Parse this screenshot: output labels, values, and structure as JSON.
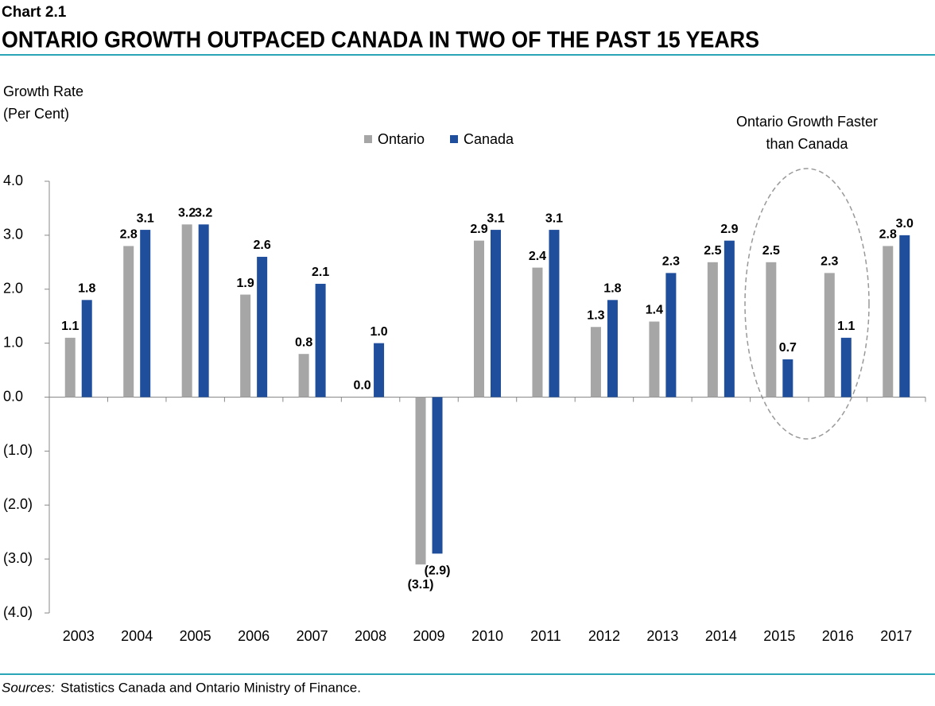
{
  "chart_data": {
    "type": "bar",
    "kicker": "Chart 2.1",
    "title": "ONTARIO GROWTH OUTPACED CANADA IN TWO OF THE PAST 15 YEARS",
    "y_label": [
      "Growth Rate",
      "(Per Cent)"
    ],
    "annotation": [
      "Ontario Growth Faster",
      "than Canada"
    ],
    "source_label": "Sources:",
    "source_text": "Statistics Canada and Ontario Ministry of Finance.",
    "categories": [
      "2003",
      "2004",
      "2005",
      "2006",
      "2007",
      "2008",
      "2009",
      "2010",
      "2011",
      "2012",
      "2013",
      "2014",
      "2015",
      "2016",
      "2017"
    ],
    "series": [
      {
        "name": "Ontario",
        "color": "#a6a6a6",
        "values": [
          1.1,
          2.8,
          3.2,
          1.9,
          0.8,
          0.0,
          -3.1,
          2.9,
          2.4,
          1.3,
          1.4,
          2.5,
          2.5,
          2.3,
          2.8
        ],
        "value_labels": [
          "1.1",
          "2.8",
          "3.2",
          "1.9",
          "0.8",
          "0.0",
          "(3.1)",
          "2.9",
          "2.4",
          "1.3",
          "1.4",
          "2.5",
          "2.5",
          "2.3",
          "2.8"
        ]
      },
      {
        "name": "Canada",
        "color": "#1f4e9c",
        "values": [
          1.8,
          3.1,
          3.2,
          2.6,
          2.1,
          1.0,
          -2.9,
          3.1,
          3.1,
          1.8,
          2.3,
          2.9,
          0.7,
          1.1,
          3.0
        ],
        "value_labels": [
          "1.8",
          "3.1",
          "3.2",
          "2.6",
          "2.1",
          "1.0",
          "(2.9)",
          "3.1",
          "3.1",
          "1.8",
          "2.3",
          "2.9",
          "0.7",
          "1.1",
          "3.0"
        ]
      }
    ],
    "ylim": [
      -4,
      4
    ],
    "yticks": [
      {
        "value": 4,
        "label": "4.0"
      },
      {
        "value": 3,
        "label": "3.0"
      },
      {
        "value": 2,
        "label": "2.0"
      },
      {
        "value": 1,
        "label": "1.0"
      },
      {
        "value": 0,
        "label": "0.0"
      },
      {
        "value": -1,
        "label": "(1.0)"
      },
      {
        "value": -2,
        "label": "(2.0)"
      },
      {
        "value": -3,
        "label": "(3.0)"
      },
      {
        "value": -4,
        "label": "(4.0)"
      }
    ],
    "grid": false
  }
}
